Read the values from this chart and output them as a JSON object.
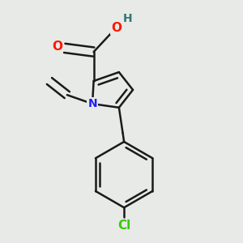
{
  "background_color": "#e8eae8",
  "bond_color": "#1a1a1a",
  "N_color": "#2020ff",
  "O_color": "#ff1500",
  "Cl_color": "#33cc00",
  "H_color": "#337777",
  "line_width": 1.8,
  "figsize": [
    3.0,
    3.0
  ],
  "dpi": 100,
  "xlim": [
    0.05,
    0.95
  ],
  "ylim": [
    0.02,
    0.98
  ]
}
